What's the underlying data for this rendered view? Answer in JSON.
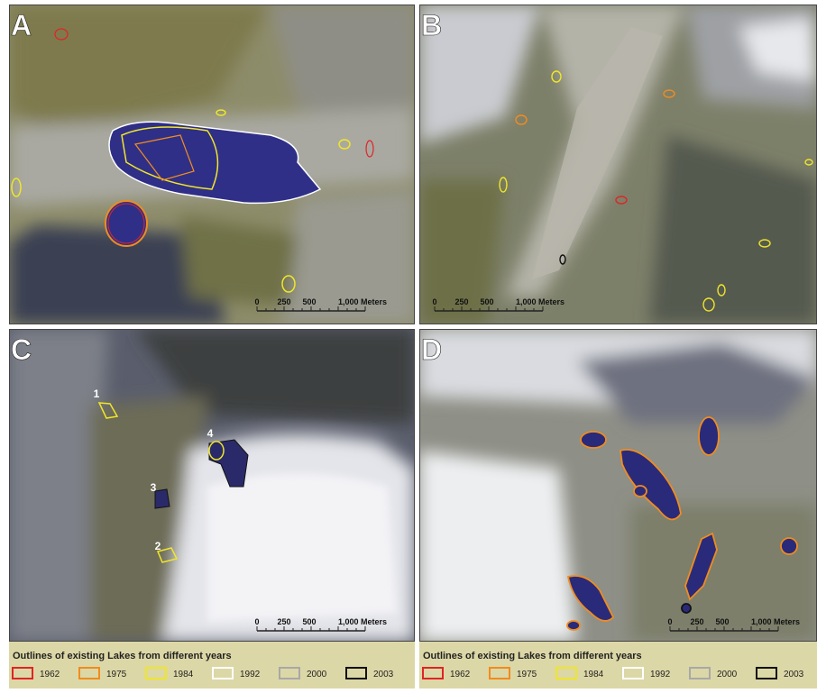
{
  "panels": [
    {
      "label": "A",
      "scale": [
        "0",
        "250",
        "500",
        "1,000 Meters"
      ]
    },
    {
      "label": "B",
      "scale": [
        "0",
        "250",
        "500",
        "1,000 Meters"
      ]
    },
    {
      "label": "C",
      "scale": [
        "0",
        "250",
        "500",
        "1,000 Meters"
      ],
      "lake_numbers": [
        "1",
        "2",
        "3",
        "4"
      ]
    },
    {
      "label": "D",
      "scale": [
        "0",
        "250",
        "500",
        "1,000 Meters"
      ]
    }
  ],
  "legends": [
    {
      "title": "Outlines of existing Lakes from different years",
      "items": [
        {
          "year": "1962",
          "color": "#e02424"
        },
        {
          "year": "1975",
          "color": "#f08c1e"
        },
        {
          "year": "1984",
          "color": "#f0e628"
        },
        {
          "year": "1992",
          "color": "#ffffff"
        },
        {
          "year": "2000",
          "color": "#a8a8a8"
        },
        {
          "year": "2003",
          "color": "#111111"
        }
      ]
    },
    {
      "title": "Outlines of existing Lakes from different years",
      "items": [
        {
          "year": "1962",
          "color": "#e02424"
        },
        {
          "year": "1975",
          "color": "#f08c1e"
        },
        {
          "year": "1984",
          "color": "#f0e628"
        },
        {
          "year": "1992",
          "color": "#ffffff"
        },
        {
          "year": "2000",
          "color": "#a8a8a8"
        },
        {
          "year": "2003",
          "color": "#111111"
        }
      ]
    }
  ]
}
